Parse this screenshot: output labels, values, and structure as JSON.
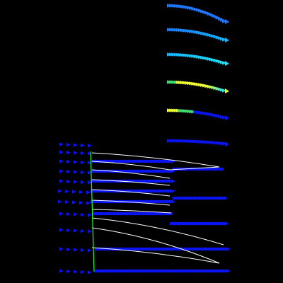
{
  "colors": {
    "background": "#000000",
    "vector_blue": "#0a14f0",
    "vector_light_blue": "#1e78ff",
    "vector_cyan": "#12b4ff",
    "vector_aqua": "#20e0f0",
    "vector_yellow": "#f0ff30",
    "vector_green": "#40e070",
    "streamline": "#ffffff",
    "boundary_line": "#20ff20"
  },
  "legend_scale": [
    "#0a14f0",
    "#1e78ff",
    "#12b4ff",
    "#20e0f0",
    "#40e070",
    "#f0ff30"
  ]
}
